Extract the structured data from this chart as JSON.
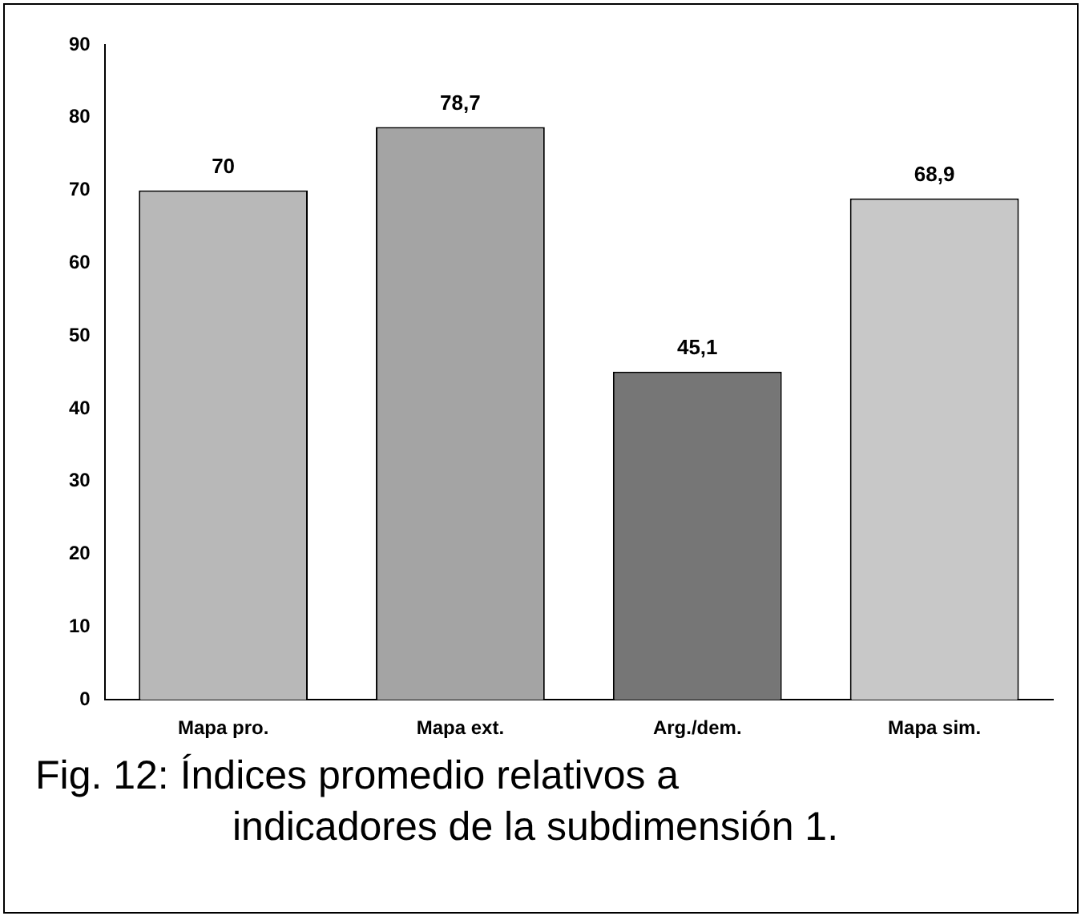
{
  "chart_data": {
    "type": "bar",
    "categories": [
      "Mapa pro.",
      "Mapa ext.",
      "Arg./dem.",
      "Mapa sim."
    ],
    "values": [
      70,
      78.7,
      45.1,
      68.9
    ],
    "colors": [
      "#b8b8b8",
      "#a4a4a4",
      "#767676",
      "#c8c8c8"
    ],
    "ylim": [
      0,
      90
    ],
    "yticks": [
      0,
      10,
      20,
      30,
      40,
      50,
      60,
      70,
      80,
      90
    ],
    "value_labels": [
      "70",
      "78,7",
      "45,1",
      "68,9"
    ],
    "grid": false,
    "legend": false,
    "annotations": [
      "Fig. 12: Índices promedio relativos a\nindicadores de la subdimensión 1."
    ]
  }
}
